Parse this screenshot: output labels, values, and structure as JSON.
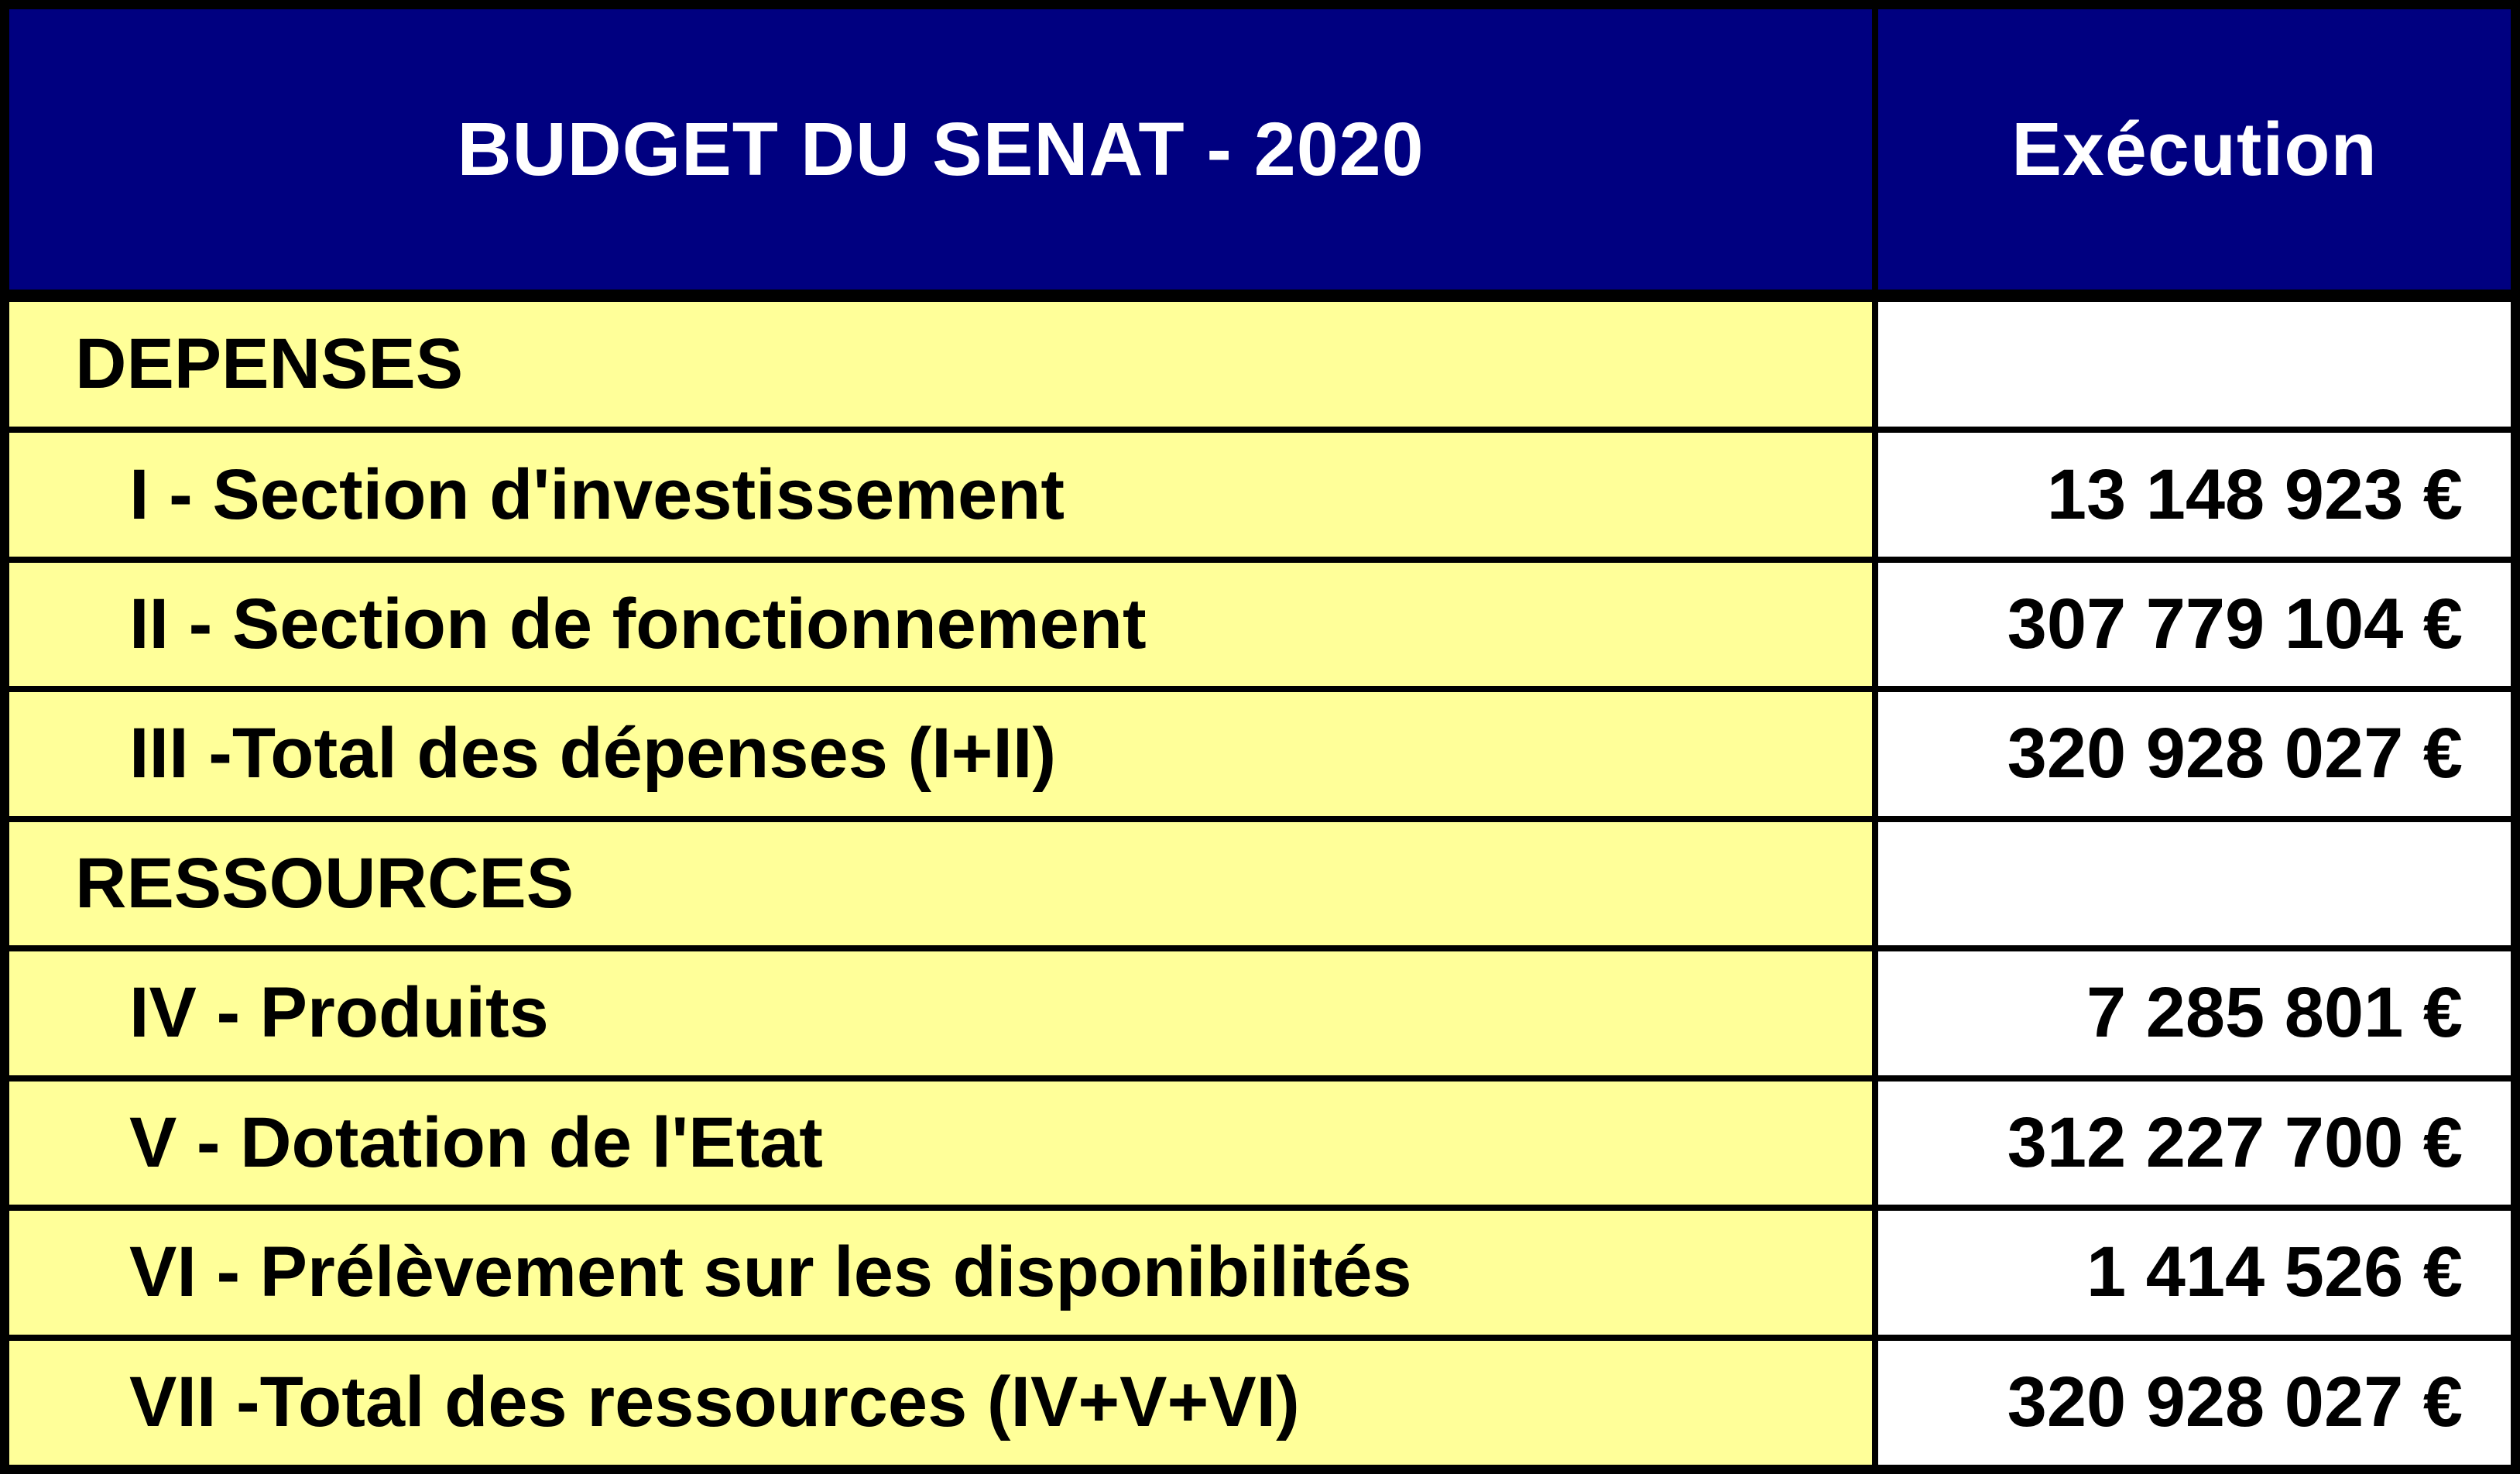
{
  "chart_data": {
    "type": "table",
    "title": "BUDGET DU SENAT - 2020",
    "columns": [
      "BUDGET DU SENAT - 2020",
      "Exécution"
    ],
    "rows": [
      {
        "kind": "section",
        "label": "DEPENSES",
        "value": null,
        "value_display": ""
      },
      {
        "kind": "item",
        "label": "I - Section d'investissement",
        "value": 13148923,
        "value_display": "13 148 923 €"
      },
      {
        "kind": "item",
        "label": "II - Section de fonctionnement",
        "value": 307779104,
        "value_display": "307 779 104 €"
      },
      {
        "kind": "item",
        "label": "III -Total des dépenses (I+II)",
        "value": 320928027,
        "value_display": "320 928 027 €"
      },
      {
        "kind": "section",
        "label": "RESSOURCES",
        "value": null,
        "value_display": ""
      },
      {
        "kind": "item",
        "label": "IV - Produits",
        "value": 7285801,
        "value_display": "7 285 801 €"
      },
      {
        "kind": "item",
        "label": "V - Dotation de l'Etat",
        "value": 312227700,
        "value_display": "312 227 700 €"
      },
      {
        "kind": "item",
        "label": "VI - Prélèvement sur les disponibilités",
        "value": 1414526,
        "value_display": "1 414 526 €"
      },
      {
        "kind": "item",
        "label": "VII -Total des ressources (IV+V+VI)",
        "value": 320928027,
        "value_display": "320 928 027 €"
      }
    ],
    "currency": "EUR",
    "layout_hints": {
      "grid": true,
      "header_row": true,
      "value_column_align": "right"
    }
  },
  "colors": {
    "header_bg": "#000080",
    "header_fg": "#FFFFFF",
    "label_bg": "#FFFF99",
    "value_bg": "#FFFFFF",
    "border": "#000000",
    "body_fg": "#000000"
  }
}
